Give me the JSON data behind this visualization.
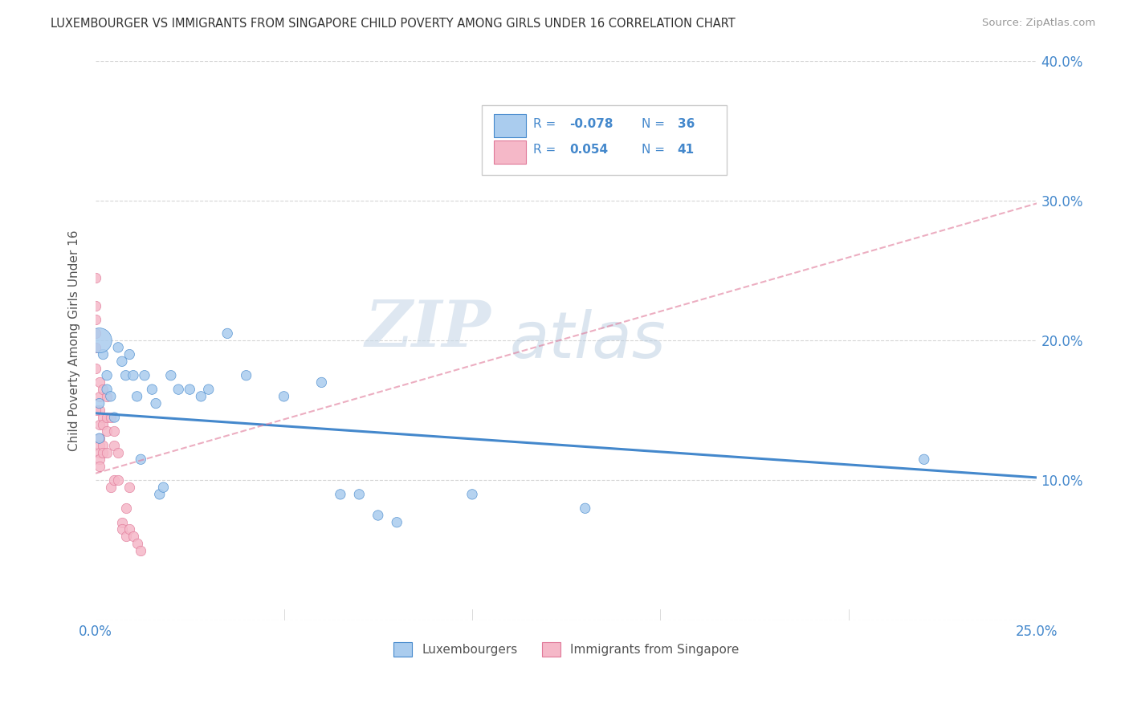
{
  "title": "LUXEMBOURGER VS IMMIGRANTS FROM SINGAPORE CHILD POVERTY AMONG GIRLS UNDER 16 CORRELATION CHART",
  "source": "Source: ZipAtlas.com",
  "ylabel": "Child Poverty Among Girls Under 16",
  "xlim": [
    0.0,
    0.25
  ],
  "ylim": [
    0.0,
    0.4
  ],
  "background_color": "#ffffff",
  "grid_color": "#cccccc",
  "watermark_zip": "ZIP",
  "watermark_atlas": "atlas",
  "lux_R": -0.078,
  "lux_N": 36,
  "sing_R": 0.054,
  "sing_N": 41,
  "lux_color": "#aaccee",
  "lux_line_color": "#4488cc",
  "sing_color": "#f5b8c8",
  "sing_line_color": "#e07898",
  "lux_x": [
    0.001,
    0.001,
    0.002,
    0.003,
    0.003,
    0.004,
    0.005,
    0.006,
    0.007,
    0.008,
    0.009,
    0.01,
    0.011,
    0.012,
    0.013,
    0.015,
    0.016,
    0.017,
    0.018,
    0.02,
    0.022,
    0.025,
    0.028,
    0.03,
    0.035,
    0.04,
    0.05,
    0.06,
    0.065,
    0.07,
    0.075,
    0.08,
    0.1,
    0.13,
    0.22,
    0.001
  ],
  "lux_y": [
    0.155,
    0.13,
    0.19,
    0.175,
    0.165,
    0.16,
    0.145,
    0.195,
    0.185,
    0.175,
    0.19,
    0.175,
    0.16,
    0.115,
    0.175,
    0.165,
    0.155,
    0.09,
    0.095,
    0.175,
    0.165,
    0.165,
    0.16,
    0.165,
    0.205,
    0.175,
    0.16,
    0.17,
    0.09,
    0.09,
    0.075,
    0.07,
    0.09,
    0.08,
    0.115,
    0.2
  ],
  "lux_sizes": [
    80,
    80,
    80,
    80,
    80,
    80,
    80,
    80,
    80,
    80,
    80,
    80,
    80,
    80,
    80,
    80,
    80,
    80,
    80,
    80,
    80,
    80,
    80,
    80,
    80,
    80,
    80,
    80,
    80,
    80,
    80,
    80,
    80,
    80,
    80,
    500
  ],
  "sing_x": [
    0.0,
    0.0,
    0.0,
    0.0,
    0.0,
    0.0,
    0.001,
    0.001,
    0.001,
    0.001,
    0.001,
    0.001,
    0.001,
    0.001,
    0.001,
    0.002,
    0.002,
    0.002,
    0.002,
    0.002,
    0.003,
    0.003,
    0.003,
    0.003,
    0.004,
    0.004,
    0.005,
    0.005,
    0.005,
    0.006,
    0.006,
    0.007,
    0.007,
    0.008,
    0.008,
    0.009,
    0.009,
    0.01,
    0.011,
    0.012,
    0.0
  ],
  "sing_y": [
    0.245,
    0.225,
    0.215,
    0.205,
    0.195,
    0.18,
    0.17,
    0.16,
    0.15,
    0.14,
    0.13,
    0.125,
    0.12,
    0.115,
    0.11,
    0.165,
    0.145,
    0.14,
    0.125,
    0.12,
    0.16,
    0.145,
    0.135,
    0.12,
    0.145,
    0.095,
    0.135,
    0.125,
    0.1,
    0.12,
    0.1,
    0.07,
    0.065,
    0.06,
    0.08,
    0.095,
    0.065,
    0.06,
    0.055,
    0.05,
    0.15
  ],
  "lux_line_x0": 0.0,
  "lux_line_y0": 0.148,
  "lux_line_x1": 0.25,
  "lux_line_y1": 0.102,
  "sing_line_x0": 0.0,
  "sing_line_y0": 0.105,
  "sing_line_x1": 0.25,
  "sing_line_y1": 0.298
}
